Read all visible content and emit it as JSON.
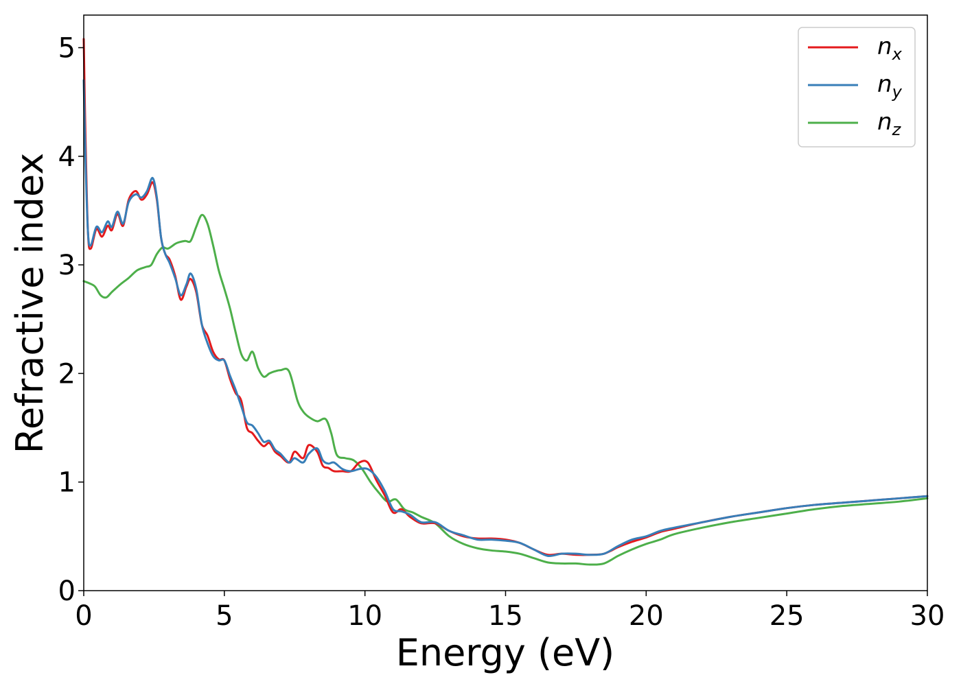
{
  "chart_data": {
    "type": "line",
    "xlabel": "Energy (eV)",
    "ylabel": "Refractive index",
    "xlim": [
      0,
      30
    ],
    "ylim": [
      0,
      5.3
    ],
    "xticks": [
      "0",
      "5",
      "10",
      "15",
      "20",
      "25",
      "30"
    ],
    "yticks": [
      "0",
      "1",
      "2",
      "3",
      "4",
      "5"
    ],
    "grid": false,
    "legend_position": "top-right",
    "colors": {
      "nx": "#e41a1c",
      "ny": "#377eb8",
      "nz": "#4daf4a"
    },
    "series": [
      {
        "key": "nx",
        "name": "n",
        "subscript": "x",
        "x": [
          0,
          0.06,
          0.15,
          0.25,
          0.45,
          0.65,
          0.85,
          1.0,
          1.2,
          1.4,
          1.6,
          1.85,
          2.05,
          2.25,
          2.45,
          2.6,
          2.75,
          2.9,
          3.05,
          3.25,
          3.45,
          3.65,
          3.8,
          4.0,
          4.2,
          4.4,
          4.6,
          4.8,
          5.0,
          5.2,
          5.4,
          5.6,
          5.8,
          6.0,
          6.2,
          6.4,
          6.6,
          6.8,
          7.0,
          7.3,
          7.5,
          7.8,
          8.0,
          8.3,
          8.5,
          8.7,
          8.9,
          9.2,
          9.5,
          9.8,
          10.1,
          10.4,
          10.7,
          11.0,
          11.3,
          11.6,
          12.0,
          12.5,
          13.0,
          13.5,
          14.0,
          14.5,
          15.0,
          15.5,
          16.0,
          16.5,
          17.0,
          17.5,
          18.0,
          18.5,
          19.0,
          19.5,
          20.0,
          20.5,
          21.0,
          22.0,
          23.0,
          24.0,
          25.0,
          26.0,
          27.0,
          28.0,
          29.0,
          30.0
        ],
        "y": [
          5.08,
          4.2,
          3.3,
          3.15,
          3.33,
          3.26,
          3.36,
          3.32,
          3.47,
          3.36,
          3.6,
          3.68,
          3.6,
          3.65,
          3.76,
          3.6,
          3.25,
          3.1,
          3.05,
          2.9,
          2.68,
          2.8,
          2.87,
          2.75,
          2.45,
          2.35,
          2.2,
          2.13,
          2.12,
          1.95,
          1.82,
          1.75,
          1.5,
          1.45,
          1.38,
          1.33,
          1.36,
          1.28,
          1.24,
          1.18,
          1.28,
          1.22,
          1.34,
          1.28,
          1.15,
          1.13,
          1.1,
          1.1,
          1.1,
          1.18,
          1.18,
          1.02,
          0.88,
          0.72,
          0.75,
          0.68,
          0.62,
          0.62,
          0.55,
          0.5,
          0.48,
          0.48,
          0.47,
          0.44,
          0.38,
          0.33,
          0.34,
          0.33,
          0.33,
          0.34,
          0.4,
          0.45,
          0.49,
          0.54,
          0.57,
          0.63,
          0.68,
          0.72,
          0.76,
          0.79,
          0.81,
          0.83,
          0.85,
          0.87
        ]
      },
      {
        "key": "ny",
        "name": "n",
        "subscript": "y",
        "x": [
          0,
          0.06,
          0.15,
          0.25,
          0.45,
          0.65,
          0.85,
          1.0,
          1.2,
          1.4,
          1.6,
          1.85,
          2.05,
          2.25,
          2.45,
          2.6,
          2.75,
          2.9,
          3.05,
          3.25,
          3.45,
          3.65,
          3.8,
          4.0,
          4.2,
          4.4,
          4.6,
          4.8,
          5.0,
          5.2,
          5.4,
          5.6,
          5.8,
          6.0,
          6.2,
          6.4,
          6.6,
          6.8,
          7.0,
          7.3,
          7.5,
          7.8,
          8.0,
          8.3,
          8.5,
          8.7,
          8.9,
          9.2,
          9.5,
          9.8,
          10.1,
          10.4,
          10.7,
          11.0,
          11.3,
          11.6,
          12.0,
          12.5,
          13.0,
          13.5,
          14.0,
          14.5,
          15.0,
          15.5,
          16.0,
          16.5,
          17.0,
          17.5,
          18.0,
          18.5,
          19.0,
          19.5,
          20.0,
          20.5,
          21.0,
          22.0,
          23.0,
          24.0,
          25.0,
          26.0,
          27.0,
          28.0,
          29.0,
          30.0
        ],
        "y": [
          4.7,
          4.0,
          3.3,
          3.18,
          3.35,
          3.3,
          3.4,
          3.35,
          3.49,
          3.38,
          3.58,
          3.65,
          3.62,
          3.68,
          3.8,
          3.62,
          3.25,
          3.1,
          3.02,
          2.88,
          2.72,
          2.82,
          2.92,
          2.78,
          2.45,
          2.28,
          2.16,
          2.12,
          2.12,
          1.98,
          1.85,
          1.7,
          1.55,
          1.52,
          1.45,
          1.37,
          1.38,
          1.3,
          1.26,
          1.18,
          1.22,
          1.18,
          1.26,
          1.31,
          1.2,
          1.17,
          1.18,
          1.12,
          1.1,
          1.12,
          1.12,
          1.05,
          0.92,
          0.75,
          0.73,
          0.7,
          0.63,
          0.63,
          0.55,
          0.51,
          0.47,
          0.47,
          0.46,
          0.44,
          0.38,
          0.32,
          0.34,
          0.34,
          0.33,
          0.34,
          0.41,
          0.47,
          0.5,
          0.55,
          0.58,
          0.63,
          0.68,
          0.72,
          0.76,
          0.79,
          0.81,
          0.83,
          0.85,
          0.87
        ]
      },
      {
        "key": "nz",
        "name": "n",
        "subscript": "z",
        "x": [
          0,
          0.2,
          0.4,
          0.6,
          0.8,
          1.0,
          1.3,
          1.6,
          1.9,
          2.2,
          2.4,
          2.6,
          2.8,
          3.0,
          3.3,
          3.6,
          3.8,
          4.0,
          4.2,
          4.4,
          4.6,
          4.8,
          5.0,
          5.2,
          5.4,
          5.6,
          5.8,
          6.0,
          6.2,
          6.4,
          6.6,
          6.8,
          7.0,
          7.3,
          7.6,
          7.8,
          8.0,
          8.3,
          8.6,
          8.8,
          9.0,
          9.3,
          9.6,
          9.9,
          10.2,
          10.5,
          10.8,
          11.1,
          11.4,
          11.7,
          12.0,
          12.5,
          13.0,
          13.5,
          14.0,
          14.5,
          15.0,
          15.5,
          16.0,
          16.5,
          17.0,
          17.5,
          18.0,
          18.5,
          19.0,
          19.5,
          20.0,
          20.5,
          21.0,
          22.0,
          23.0,
          24.0,
          25.0,
          26.0,
          27.0,
          28.0,
          29.0,
          30.0
        ],
        "y": [
          2.85,
          2.83,
          2.8,
          2.72,
          2.7,
          2.75,
          2.82,
          2.88,
          2.95,
          2.98,
          3.0,
          3.1,
          3.16,
          3.15,
          3.2,
          3.22,
          3.22,
          3.35,
          3.46,
          3.38,
          3.18,
          2.95,
          2.78,
          2.6,
          2.38,
          2.18,
          2.12,
          2.2,
          2.05,
          1.97,
          2.0,
          2.02,
          2.03,
          2.02,
          1.75,
          1.65,
          1.6,
          1.56,
          1.58,
          1.45,
          1.25,
          1.22,
          1.2,
          1.12,
          1.0,
          0.9,
          0.82,
          0.84,
          0.75,
          0.72,
          0.68,
          0.62,
          0.5,
          0.43,
          0.39,
          0.37,
          0.36,
          0.34,
          0.3,
          0.26,
          0.25,
          0.25,
          0.24,
          0.25,
          0.32,
          0.38,
          0.43,
          0.47,
          0.52,
          0.58,
          0.63,
          0.67,
          0.71,
          0.75,
          0.78,
          0.8,
          0.82,
          0.85
        ]
      }
    ]
  }
}
